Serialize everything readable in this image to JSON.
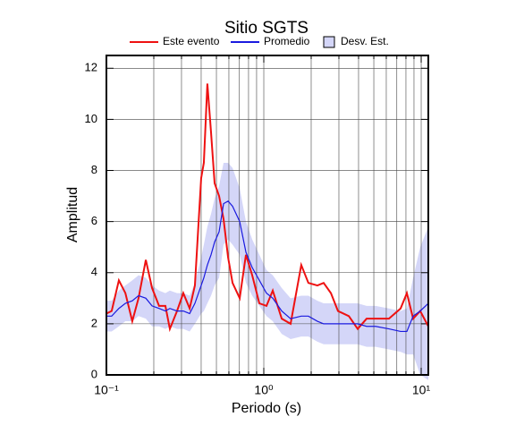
{
  "chart_data": {
    "type": "line",
    "title": "Sitio SGTS",
    "xlabel": "Periodo (s)",
    "ylabel": "Amplitud",
    "xlog": true,
    "grid": true,
    "legend": "top",
    "xlim": [
      0.1,
      11.1
    ],
    "ylim": [
      0,
      12.5
    ],
    "xticks": [
      {
        "value": 0.1,
        "label": "10⁻¹"
      },
      {
        "value": 1,
        "label": "10⁰"
      },
      {
        "value": 10,
        "label": "10¹"
      }
    ],
    "yticks": [
      0,
      2,
      4,
      6,
      8,
      10,
      12
    ],
    "x": [
      0.1,
      0.108,
      0.12,
      0.132,
      0.146,
      0.16,
      0.178,
      0.195,
      0.216,
      0.237,
      0.253,
      0.281,
      0.308,
      0.338,
      0.365,
      0.4,
      0.416,
      0.438,
      0.462,
      0.487,
      0.52,
      0.555,
      0.593,
      0.633,
      0.703,
      0.77,
      0.844,
      0.937,
      1.04,
      1.14,
      1.3,
      1.48,
      1.73,
      1.92,
      2.19,
      2.4,
      2.67,
      2.96,
      3.47,
      3.95,
      4.5,
      5.13,
      6.24,
      7.4,
      8.11,
      8.89,
      9.86,
      11.1
    ],
    "series": [
      {
        "name": "Este evento",
        "color": "#ee1111",
        "values": [
          2.4,
          2.5,
          3.7,
          3.2,
          2.1,
          3.0,
          4.5,
          3.4,
          2.7,
          2.7,
          1.8,
          2.5,
          3.2,
          2.6,
          3.5,
          7.7,
          8.3,
          11.4,
          9.5,
          7.5,
          7.0,
          6.1,
          4.6,
          3.6,
          3.0,
          4.7,
          3.9,
          2.8,
          2.7,
          3.3,
          2.2,
          2.0,
          4.3,
          3.6,
          3.5,
          3.6,
          3.2,
          2.5,
          2.3,
          1.8,
          2.2,
          2.2,
          2.2,
          2.6,
          3.2,
          2.2,
          2.5,
          1.9
        ]
      },
      {
        "name": "Promedio",
        "color": "#1a1adf",
        "values": [
          2.3,
          2.3,
          2.6,
          2.8,
          2.9,
          3.1,
          3.0,
          2.7,
          2.6,
          2.5,
          2.6,
          2.5,
          2.5,
          2.4,
          2.8,
          3.5,
          3.8,
          4.3,
          4.7,
          5.2,
          5.6,
          6.7,
          6.8,
          6.6,
          6.0,
          4.8,
          4.2,
          3.7,
          3.2,
          3.0,
          2.5,
          2.2,
          2.3,
          2.3,
          2.1,
          2.0,
          2.0,
          2.0,
          2.0,
          2.0,
          1.9,
          1.9,
          1.8,
          1.7,
          1.7,
          2.3,
          2.5,
          2.8
        ]
      },
      {
        "name": "Desv. Est.",
        "color": "#d4d6f8",
        "values": [
          0.6,
          0.6,
          0.7,
          0.7,
          0.8,
          0.8,
          0.8,
          0.8,
          0.7,
          0.7,
          0.7,
          0.7,
          0.7,
          0.7,
          0.8,
          1.1,
          1.3,
          1.5,
          1.6,
          1.7,
          1.8,
          1.6,
          1.5,
          1.5,
          1.3,
          1.2,
          1.1,
          1.0,
          0.9,
          0.9,
          0.9,
          0.8,
          0.8,
          0.8,
          0.8,
          0.8,
          0.8,
          0.8,
          0.8,
          0.8,
          0.8,
          0.8,
          0.8,
          0.8,
          0.9,
          1.5,
          2.5,
          3.0
        ]
      }
    ]
  }
}
